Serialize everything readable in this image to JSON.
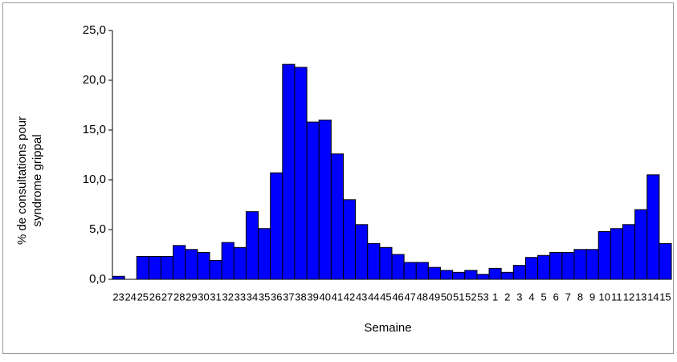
{
  "chart_data": {
    "type": "bar",
    "ylabel": [
      "% de consultations pour",
      "syndrome grippal"
    ],
    "xlabel": "Semaine",
    "categories": [
      "23",
      "24",
      "25",
      "26",
      "27",
      "28",
      "29",
      "30",
      "31",
      "32",
      "33",
      "34",
      "35",
      "36",
      "37",
      "38",
      "39",
      "40",
      "41",
      "42",
      "43",
      "44",
      "45",
      "46",
      "47",
      "48",
      "49",
      "50",
      "51",
      "52",
      "53",
      "1",
      "2",
      "3",
      "4",
      "5",
      "6",
      "7",
      "8",
      "9",
      "10",
      "11",
      "12",
      "13",
      "14",
      "15"
    ],
    "values": [
      0.3,
      0,
      2.3,
      2.3,
      2.3,
      3.4,
      3.0,
      2.7,
      1.9,
      3.7,
      3.2,
      6.8,
      5.1,
      10.7,
      21.6,
      21.3,
      15.8,
      16.0,
      12.6,
      8.0,
      5.5,
      3.6,
      3.2,
      2.5,
      1.7,
      1.7,
      1.2,
      0.9,
      0.7,
      0.9,
      0.5,
      1.1,
      0.7,
      1.4,
      2.2,
      2.4,
      2.7,
      2.7,
      3.0,
      3.0,
      4.8,
      5.1,
      5.5,
      7.0,
      10.5,
      3.6
    ],
    "color": "#0000ff",
    "ylim": [
      0,
      25
    ],
    "yticks": [
      {
        "value": 0,
        "label": "0,0"
      },
      {
        "value": 5,
        "label": "5,0"
      },
      {
        "value": 10,
        "label": "10,0"
      },
      {
        "value": 15,
        "label": "15,0"
      },
      {
        "value": 20,
        "label": "20,0"
      },
      {
        "value": 25,
        "label": "25,0"
      }
    ]
  }
}
